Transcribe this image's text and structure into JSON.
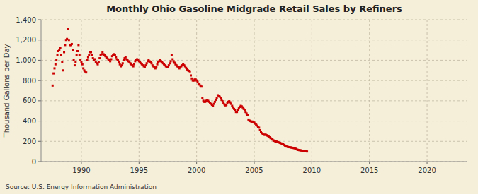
{
  "chart_data": {
    "type": "scatter",
    "title": "Monthly Ohio Gasoline Midgrade Retail Sales by Refiners",
    "y_label": "Thousand Gallons per Day",
    "annotations": [
      "Source: U.S. Energy Information Administration"
    ],
    "color": "#cc0000",
    "marker": "square",
    "grid": true,
    "xlim": [
      1986.5,
      2023.5
    ],
    "xticks": [
      1990,
      1995,
      2000,
      2005,
      2010,
      2015,
      2020
    ],
    "ylim": [
      0,
      1400
    ],
    "yticks": [
      0,
      200,
      400,
      600,
      800,
      {
        "value": 1000,
        "label": "1,000"
      },
      {
        "value": 1200,
        "label": "1,200"
      },
      {
        "value": 1400,
        "label": "1,400"
      }
    ],
    "x": [
      1987.5,
      1987.583333,
      1987.666667,
      1987.75,
      1987.833333,
      1987.916667,
      1988,
      1988.083333,
      1988.166667,
      1988.25,
      1988.333333,
      1988.416667,
      1988.5,
      1988.583333,
      1988.666667,
      1988.75,
      1988.833333,
      1988.916667,
      1989,
      1989.083333,
      1989.166667,
      1989.25,
      1989.333333,
      1989.416667,
      1989.5,
      1989.583333,
      1989.666667,
      1989.75,
      1989.833333,
      1989.916667,
      1990,
      1990.083333,
      1990.166667,
      1990.25,
      1990.333333,
      1990.416667,
      1990.5,
      1990.583333,
      1990.666667,
      1990.75,
      1990.833333,
      1990.916667,
      1991,
      1991.083333,
      1991.166667,
      1991.25,
      1991.333333,
      1991.416667,
      1991.5,
      1991.583333,
      1991.666667,
      1991.75,
      1991.833333,
      1991.916667,
      1992,
      1992.083333,
      1992.166667,
      1992.25,
      1992.333333,
      1992.416667,
      1992.5,
      1992.583333,
      1992.666667,
      1992.75,
      1992.833333,
      1992.916667,
      1993,
      1993.083333,
      1993.166667,
      1993.25,
      1993.333333,
      1993.416667,
      1993.5,
      1993.583333,
      1993.666667,
      1993.75,
      1993.833333,
      1993.916667,
      1994,
      1994.083333,
      1994.166667,
      1994.25,
      1994.333333,
      1994.416667,
      1994.5,
      1994.583333,
      1994.666667,
      1994.75,
      1994.833333,
      1994.916667,
      1995,
      1995.083333,
      1995.166667,
      1995.25,
      1995.333333,
      1995.416667,
      1995.5,
      1995.583333,
      1995.666667,
      1995.75,
      1995.833333,
      1995.916667,
      1996,
      1996.083333,
      1996.166667,
      1996.25,
      1996.333333,
      1996.416667,
      1996.5,
      1996.583333,
      1996.666667,
      1996.75,
      1996.833333,
      1996.916667,
      1997,
      1997.083333,
      1997.166667,
      1997.25,
      1997.333333,
      1997.416667,
      1997.5,
      1997.583333,
      1997.666667,
      1997.75,
      1997.833333,
      1997.916667,
      1998,
      1998.083333,
      1998.166667,
      1998.25,
      1998.333333,
      1998.416667,
      1998.5,
      1998.583333,
      1998.666667,
      1998.75,
      1998.833333,
      1998.916667,
      1999,
      1999.083333,
      1999.166667,
      1999.25,
      1999.333333,
      1999.416667,
      1999.5,
      1999.583333,
      1999.666667,
      1999.75,
      1999.833333,
      1999.916667,
      2000,
      2000.083333,
      2000.166667,
      2000.25,
      2000.333333,
      2000.416667,
      2000.5,
      2000.583333,
      2000.666667,
      2000.75,
      2000.833333,
      2000.916667,
      2001,
      2001.083333,
      2001.166667,
      2001.25,
      2001.333333,
      2001.416667,
      2001.5,
      2001.583333,
      2001.666667,
      2001.75,
      2001.833333,
      2001.916667,
      2002,
      2002.083333,
      2002.166667,
      2002.25,
      2002.333333,
      2002.416667,
      2002.5,
      2002.583333,
      2002.666667,
      2002.75,
      2002.833333,
      2002.916667,
      2003,
      2003.083333,
      2003.166667,
      2003.25,
      2003.333333,
      2003.416667,
      2003.5,
      2003.583333,
      2003.666667,
      2003.75,
      2003.833333,
      2003.916667,
      2004,
      2004.083333,
      2004.166667,
      2004.25,
      2004.333333,
      2004.416667,
      2004.5,
      2004.583333,
      2004.666667,
      2004.75,
      2004.833333,
      2004.916667,
      2005,
      2005.083333,
      2005.166667,
      2005.25,
      2005.333333,
      2005.416667,
      2005.5,
      2005.583333,
      2005.666667,
      2005.75,
      2005.833333,
      2005.916667,
      2006,
      2006.083333,
      2006.166667,
      2006.25,
      2006.333333,
      2006.416667,
      2006.5,
      2006.583333,
      2006.666667,
      2006.75,
      2006.833333,
      2006.916667,
      2007,
      2007.083333,
      2007.166667,
      2007.25,
      2007.333333,
      2007.416667,
      2007.5,
      2007.583333,
      2007.666667,
      2007.75,
      2007.833333,
      2007.916667,
      2008,
      2008.083333,
      2008.166667,
      2008.25,
      2008.333333,
      2008.416667,
      2008.5,
      2008.583333,
      2008.666667,
      2008.75,
      2008.833333,
      2008.916667,
      2009,
      2009.083333,
      2009.166667,
      2009.25,
      2009.333333,
      2009.416667,
      2009.5,
      2009.583333
    ],
    "values": [
      750,
      870,
      920,
      960,
      1000,
      1050,
      1090,
      1100,
      1120,
      1050,
      980,
      900,
      1080,
      1150,
      1200,
      1210,
      1310,
      1200,
      1150,
      1150,
      1160,
      1100,
      1000,
      950,
      980,
      1050,
      1090,
      1150,
      1050,
      1000,
      980,
      960,
      920,
      900,
      890,
      880,
      1000,
      1030,
      1050,
      1080,
      1080,
      1050,
      1020,
      1000,
      1010,
      980,
      970,
      960,
      980,
      1020,
      1050,
      1060,
      1080,
      1060,
      1050,
      1040,
      1030,
      1020,
      1010,
      1000,
      990,
      1010,
      1040,
      1050,
      1060,
      1050,
      1030,
      1010,
      1000,
      980,
      960,
      940,
      950,
      970,
      1000,
      1020,
      1030,
      1010,
      1000,
      990,
      980,
      970,
      960,
      950,
      940,
      960,
      990,
      1000,
      1010,
      1000,
      990,
      980,
      970,
      960,
      950,
      940,
      930,
      950,
      970,
      990,
      1000,
      990,
      980,
      970,
      950,
      940,
      930,
      920,
      930,
      960,
      980,
      990,
      1000,
      990,
      980,
      970,
      960,
      950,
      940,
      930,
      930,
      950,
      970,
      990,
      1050,
      1010,
      990,
      975,
      960,
      950,
      940,
      930,
      920,
      930,
      940,
      950,
      960,
      950,
      940,
      925,
      910,
      900,
      895,
      890,
      850,
      820,
      800,
      800,
      810,
      810,
      800,
      785,
      770,
      760,
      750,
      740,
      630,
      600,
      590,
      590,
      600,
      605,
      600,
      590,
      580,
      570,
      560,
      550,
      570,
      590,
      610,
      625,
      655,
      650,
      640,
      625,
      610,
      595,
      580,
      565,
      555,
      560,
      575,
      590,
      595,
      585,
      570,
      550,
      535,
      520,
      505,
      490,
      490,
      505,
      525,
      540,
      550,
      545,
      535,
      520,
      505,
      490,
      475,
      460,
      415,
      405,
      400,
      395,
      395,
      390,
      385,
      375,
      365,
      355,
      345,
      335,
      310,
      295,
      280,
      270,
      265,
      265,
      265,
      260,
      255,
      248,
      240,
      232,
      225,
      218,
      210,
      205,
      200,
      198,
      196,
      192,
      188,
      184,
      180,
      176,
      172,
      165,
      158,
      152,
      148,
      145,
      143,
      142,
      140,
      138,
      136,
      134,
      132,
      128,
      122,
      118,
      115,
      113,
      112,
      110,
      108,
      107,
      106,
      105,
      103,
      100
    ]
  }
}
